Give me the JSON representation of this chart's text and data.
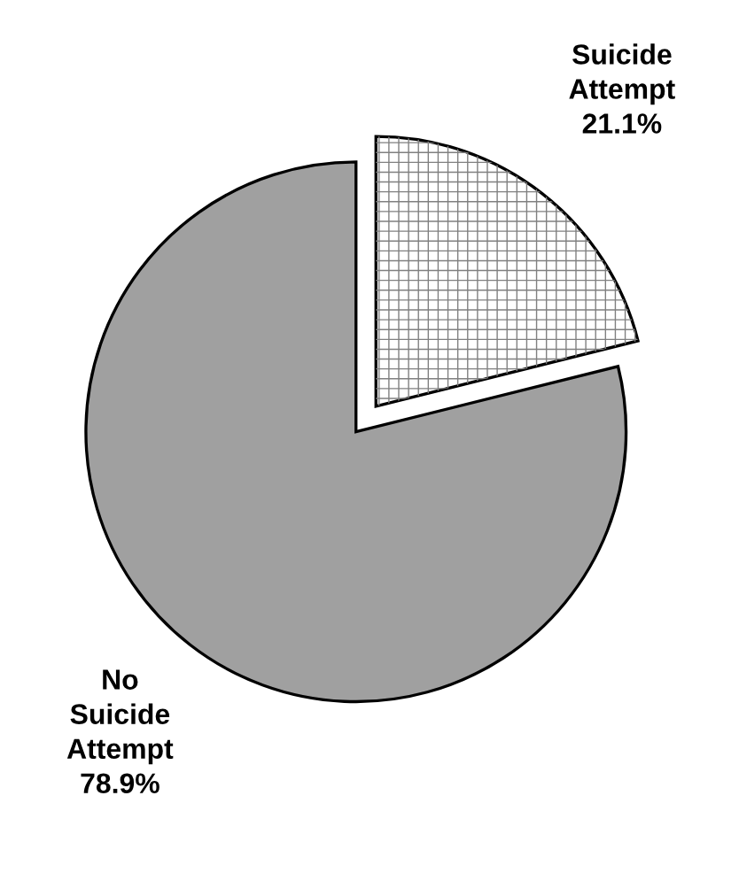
{
  "chart_data": {
    "type": "pie",
    "categories": [
      "Suicide Attempt",
      "No Suicide Attempt"
    ],
    "values": [
      21.1,
      78.9
    ],
    "value_labels": [
      "21.1%",
      "78.9%"
    ],
    "colors": [
      "#ffffff",
      "#a0a0a0"
    ]
  }
}
